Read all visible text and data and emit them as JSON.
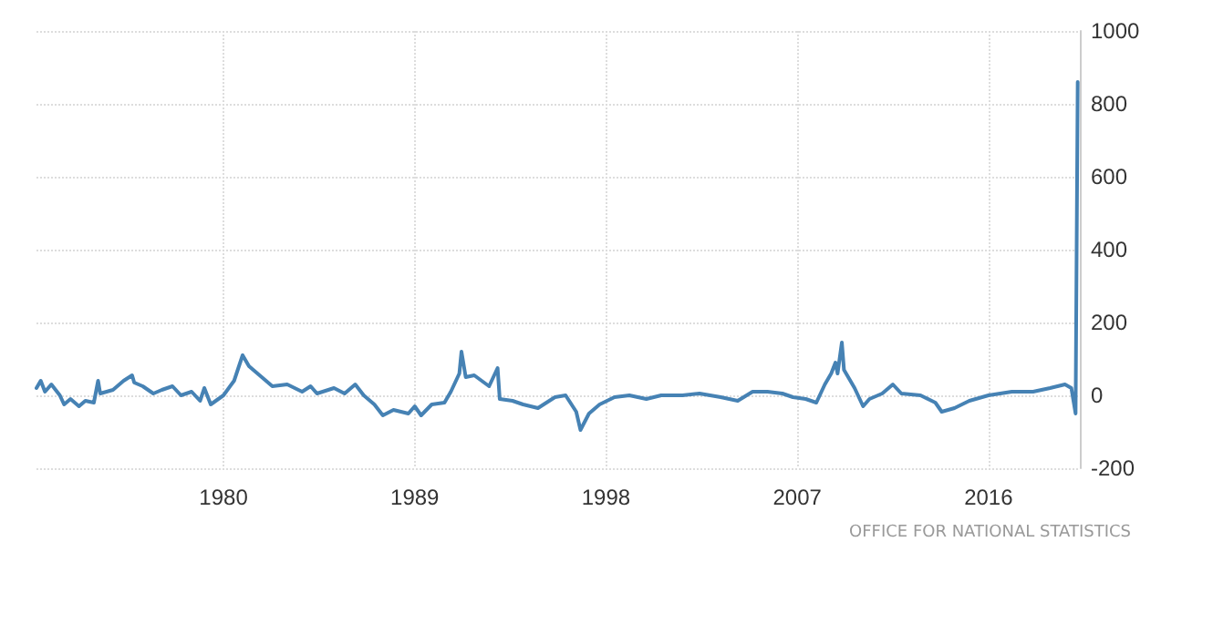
{
  "chart_data": {
    "type": "line",
    "annotations": [
      "OFFICE FOR NATIONAL STATISTICS"
    ],
    "grid": true,
    "marker": "none",
    "line_style": "solid",
    "xlim": [
      1971.2,
      2020.3
    ],
    "xticks": [
      1980,
      1989,
      1998,
      2007,
      2016
    ],
    "ylim": [
      -200,
      1000
    ],
    "yticks": [
      -200,
      0,
      200,
      400,
      600,
      800,
      1000
    ],
    "series": [
      {
        "color": "#4682b4",
        "x": [
          1971.2,
          1971.4,
          1971.6,
          1971.9,
          1972.3,
          1972.5,
          1972.8,
          1973.2,
          1973.5,
          1973.9,
          1974.1,
          1974.2,
          1974.8,
          1975.3,
          1975.7,
          1975.8,
          1976.2,
          1976.7,
          1977.1,
          1977.6,
          1978.0,
          1978.5,
          1978.9,
          1979.1,
          1979.4,
          1980.0,
          1980.5,
          1980.9,
          1981.2,
          1981.8,
          1982.3,
          1983.0,
          1983.7,
          1984.1,
          1984.4,
          1985.2,
          1985.7,
          1986.2,
          1986.6,
          1987.1,
          1987.5,
          1988.0,
          1988.7,
          1989.0,
          1989.3,
          1989.8,
          1990.4,
          1990.7,
          1991.1,
          1991.2,
          1991.4,
          1991.8,
          1992.5,
          1992.9,
          1993.0,
          1993.6,
          1994.1,
          1994.8,
          1995.6,
          1996.1,
          1996.6,
          1996.8,
          1997.2,
          1997.7,
          1998.4,
          1999.1,
          1999.9,
          2000.6,
          2001.6,
          2002.4,
          2003.4,
          2004.2,
          2004.9,
          2005.6,
          2006.3,
          2006.8,
          2007.4,
          2007.9,
          2008.3,
          2008.6,
          2008.8,
          2008.9,
          2009.1,
          2009.2,
          2009.7,
          2010.1,
          2010.4,
          2011.0,
          2011.5,
          2011.9,
          2012.8,
          2013.5,
          2013.8,
          2014.4,
          2015.1,
          2016.0,
          2017.1,
          2018.1,
          2018.9,
          2019.6,
          2019.9,
          2020.1,
          2020.2
        ],
        "values": [
          20,
          40,
          10,
          30,
          0,
          -25,
          -10,
          -30,
          -15,
          -20,
          40,
          5,
          15,
          40,
          55,
          35,
          25,
          5,
          15,
          25,
          0,
          10,
          -15,
          20,
          -25,
          0,
          40,
          110,
          80,
          50,
          25,
          30,
          10,
          25,
          5,
          20,
          5,
          30,
          0,
          -25,
          -55,
          -40,
          -50,
          -30,
          -55,
          -25,
          -20,
          10,
          60,
          120,
          50,
          55,
          25,
          75,
          -10,
          -15,
          -25,
          -35,
          -5,
          0,
          -45,
          -95,
          -50,
          -25,
          -5,
          0,
          -10,
          0,
          0,
          5,
          -5,
          -15,
          10,
          10,
          5,
          -5,
          -10,
          -20,
          30,
          60,
          90,
          60,
          145,
          70,
          20,
          -30,
          -10,
          5,
          30,
          5,
          0,
          -20,
          -45,
          -35,
          -15,
          0,
          10,
          10,
          20,
          30,
          20,
          -50,
          860
        ]
      }
    ]
  }
}
